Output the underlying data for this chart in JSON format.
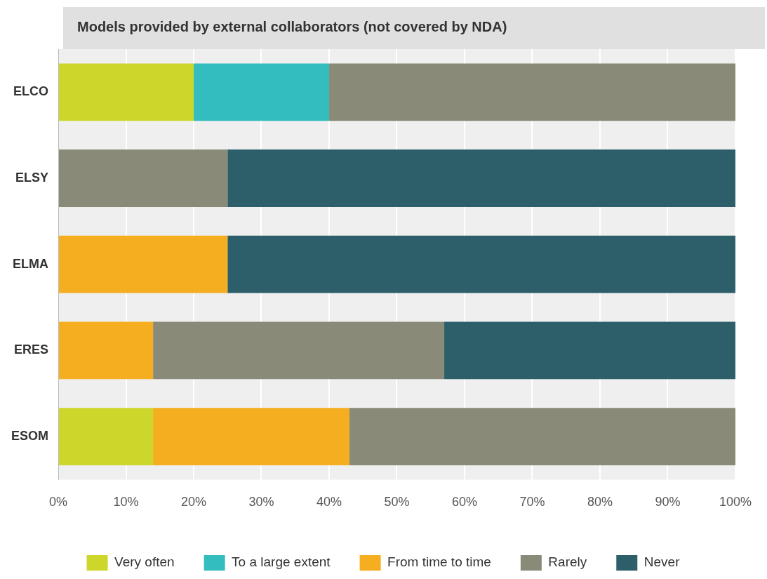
{
  "chart_data": {
    "type": "bar",
    "orientation": "horizontal",
    "stacked": true,
    "title": "Models provided by external collaborators (not covered by NDA)",
    "categories": [
      "ELCO",
      "ELSY",
      "ELMA",
      "ERES",
      "ESOM"
    ],
    "series": [
      {
        "name": "Very often",
        "color": "#cdd62a",
        "values": [
          20,
          0,
          0,
          0,
          14
        ]
      },
      {
        "name": "To a large extent",
        "color": "#33bdbf",
        "values": [
          20,
          0,
          0,
          0,
          0
        ]
      },
      {
        "name": "From time to time",
        "color": "#f5ae1f",
        "values": [
          0,
          0,
          25,
          14,
          29
        ]
      },
      {
        "name": "Rarely",
        "color": "#8a8a79",
        "values": [
          60,
          25,
          0,
          43,
          57
        ]
      },
      {
        "name": "Never",
        "color": "#2d5f6b",
        "values": [
          0,
          75,
          75,
          43,
          0
        ]
      }
    ],
    "xlim": [
      0,
      100
    ],
    "xticks": [
      {
        "value": 0,
        "label": "0%"
      },
      {
        "value": 10,
        "label": "10%"
      },
      {
        "value": 20,
        "label": "20%"
      },
      {
        "value": 30,
        "label": "30%"
      },
      {
        "value": 40,
        "label": "40%"
      },
      {
        "value": 50,
        "label": "50%"
      },
      {
        "value": 60,
        "label": "60%"
      },
      {
        "value": 70,
        "label": "70%"
      },
      {
        "value": 80,
        "label": "80%"
      },
      {
        "value": 90,
        "label": "90%"
      },
      {
        "value": 100,
        "label": "100%"
      }
    ],
    "grid": "x",
    "legend": "bottom"
  }
}
